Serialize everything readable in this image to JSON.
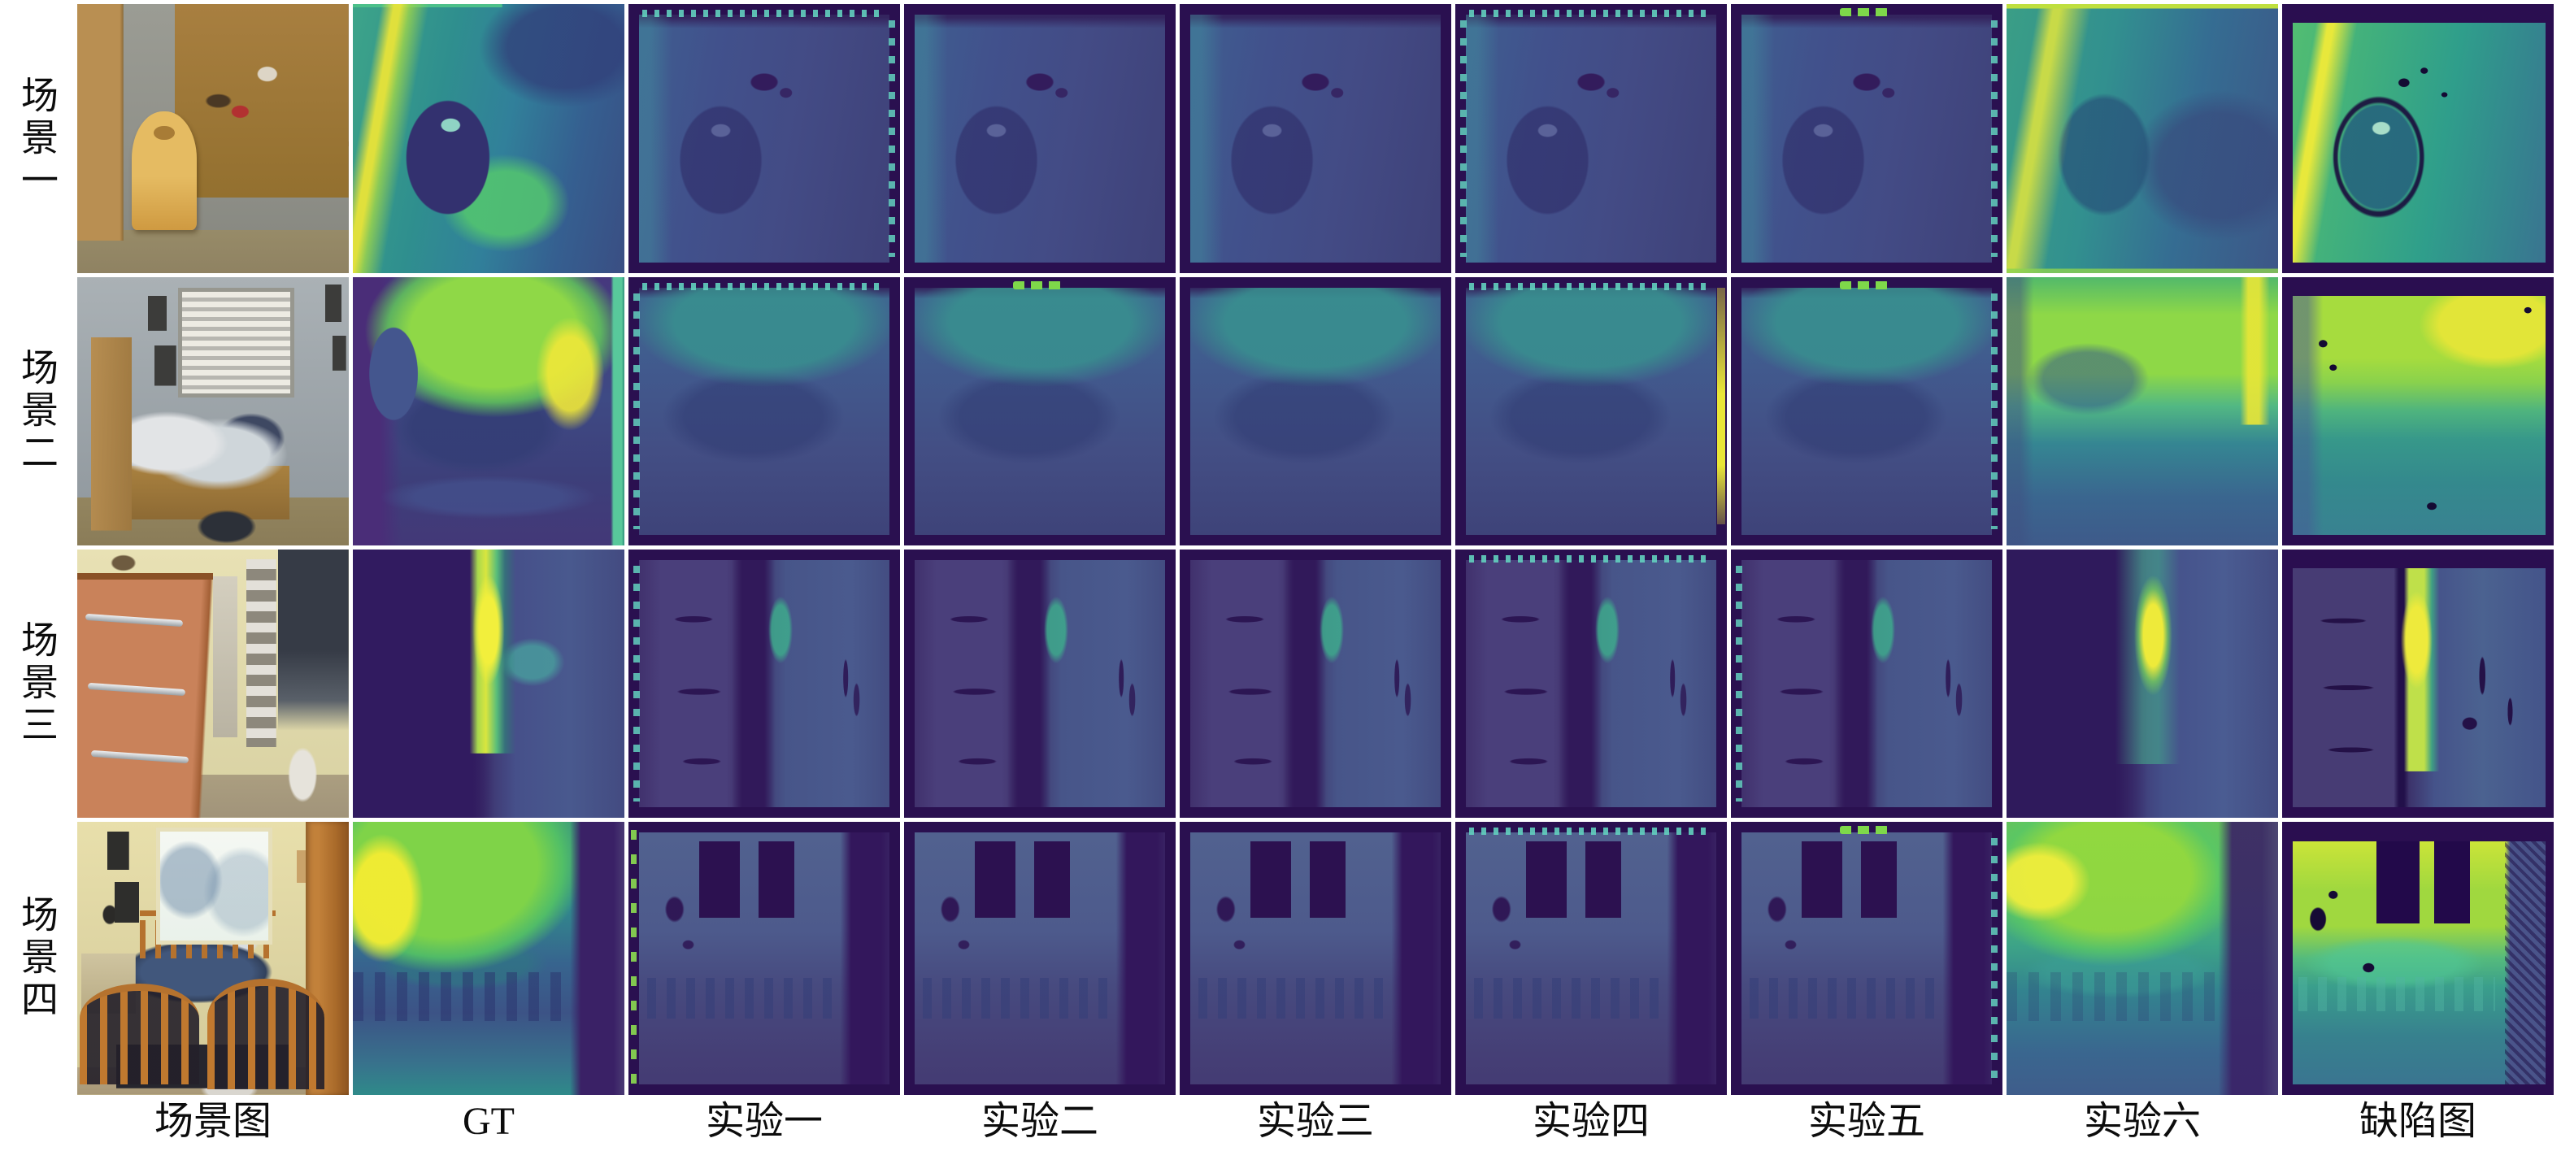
{
  "figure": {
    "row_labels": [
      "场景一",
      "场景二",
      "场景三",
      "场景四"
    ],
    "column_labels": [
      "场景图",
      "GT",
      "实验一",
      "实验二",
      "实验三",
      "实验四",
      "实验五",
      "实验六",
      "缺陷图"
    ],
    "palette": {
      "colormap": "viridis",
      "deep_purple": "#2a0e50",
      "slate_blue": "#434e85",
      "teal": "#2f8f8e",
      "green": "#4cc08a",
      "yellow_green": "#8ed847",
      "yellow": "#f2e32b",
      "background": "#ffffff",
      "label_color": "#0c0c0c"
    }
  }
}
